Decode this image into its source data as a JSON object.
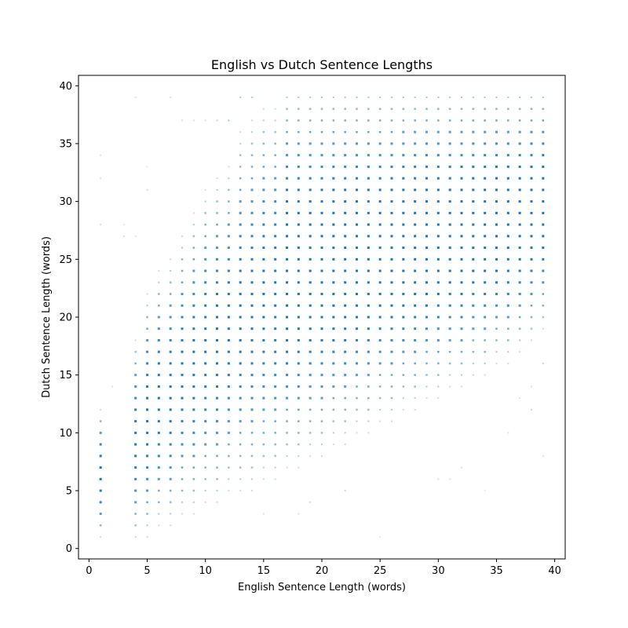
{
  "chart_data": {
    "type": "scatter",
    "title": "English vs Dutch Sentence Lengths",
    "xlabel": "English Sentence Length (words)",
    "ylabel": "Dutch Sentence Length (words)",
    "xlim": [
      -0.9,
      40.9
    ],
    "ylim": [
      -0.9,
      40.9
    ],
    "xticks": [
      0,
      5,
      10,
      15,
      20,
      25,
      30,
      35,
      40
    ],
    "yticks": [
      0,
      5,
      10,
      15,
      20,
      25,
      30,
      35,
      40
    ],
    "grid": false,
    "marker_color": "#1f77b4",
    "marker": "square",
    "encoding_note": "Points lie on an integer grid; opacity reflects density of sentence pairs at that (x, y).",
    "points": [
      {
        "x": 25,
        "y": 1,
        "alpha": 0.15
      },
      {
        "x": 34,
        "y": 5,
        "alpha": 0.15
      },
      {
        "x": 39,
        "y": 8,
        "alpha": 0.2
      },
      {
        "x": 36,
        "y": 10,
        "alpha": 0.2
      },
      {
        "x": 38,
        "y": 12,
        "alpha": 0.25
      },
      {
        "x": 37,
        "y": 13,
        "alpha": 0.2
      },
      {
        "x": 38,
        "y": 14,
        "alpha": 0.2
      },
      {
        "x": 39,
        "y": 16,
        "alpha": 0.3
      },
      {
        "x": 32,
        "y": 7,
        "alpha": 0.2
      },
      {
        "x": 30,
        "y": 6,
        "alpha": 0.2
      },
      {
        "x": 31,
        "y": 6,
        "alpha": 0.2
      },
      {
        "x": 4,
        "y": 39,
        "alpha": 0.2
      },
      {
        "x": 7,
        "y": 39,
        "alpha": 0.2
      },
      {
        "x": 1,
        "y": 34,
        "alpha": 0.2
      },
      {
        "x": 1,
        "y": 32,
        "alpha": 0.2
      },
      {
        "x": 5,
        "y": 33,
        "alpha": 0.15
      },
      {
        "x": 5,
        "y": 31,
        "alpha": 0.2
      },
      {
        "x": 1,
        "y": 28,
        "alpha": 0.2
      },
      {
        "x": 3,
        "y": 28,
        "alpha": 0.15
      },
      {
        "x": 3,
        "y": 27,
        "alpha": 0.2
      },
      {
        "x": 4,
        "y": 27,
        "alpha": 0.2
      },
      {
        "x": 2,
        "y": 14,
        "alpha": 0.2
      },
      {
        "x": 15,
        "y": 3,
        "alpha": 0.2
      },
      {
        "x": 18,
        "y": 3,
        "alpha": 0.2
      },
      {
        "x": 19,
        "y": 4,
        "alpha": 0.25
      },
      {
        "x": 22,
        "y": 5,
        "alpha": 0.25
      },
      {
        "x": 12,
        "y": 37,
        "alpha": 0.4
      },
      {
        "x": 11,
        "y": 37,
        "alpha": 0.3
      },
      {
        "x": 13,
        "y": 39,
        "alpha": 0.35
      },
      {
        "x": 14,
        "y": 39,
        "alpha": 0.35
      },
      {
        "x": 10,
        "y": 37,
        "alpha": 0.2
      },
      {
        "x": 9,
        "y": 37,
        "alpha": 0.2
      },
      {
        "x": 8,
        "y": 37,
        "alpha": 0.2
      }
    ],
    "mass": {
      "lower_curve": [
        [
          1,
          1
        ],
        [
          4,
          1
        ],
        [
          5,
          1
        ],
        [
          6,
          2
        ],
        [
          7,
          2
        ],
        [
          8,
          3
        ],
        [
          9,
          3
        ],
        [
          10,
          4
        ],
        [
          11,
          4
        ],
        [
          12,
          5
        ],
        [
          13,
          5
        ],
        [
          14,
          5
        ],
        [
          15,
          6
        ],
        [
          16,
          6
        ],
        [
          17,
          7
        ],
        [
          18,
          7
        ],
        [
          19,
          8
        ],
        [
          20,
          8
        ],
        [
          21,
          9
        ],
        [
          22,
          9
        ],
        [
          23,
          10
        ],
        [
          24,
          10
        ],
        [
          25,
          11
        ],
        [
          26,
          11
        ],
        [
          27,
          12
        ],
        [
          28,
          12
        ],
        [
          29,
          13
        ],
        [
          30,
          13
        ],
        [
          31,
          14
        ],
        [
          32,
          14
        ],
        [
          33,
          15
        ],
        [
          34,
          15
        ],
        [
          35,
          16
        ],
        [
          36,
          16
        ],
        [
          37,
          17
        ],
        [
          38,
          18
        ],
        [
          39,
          19
        ]
      ],
      "upper_curve": [
        [
          1,
          12
        ],
        [
          2,
          12
        ],
        [
          3,
          14
        ],
        [
          4,
          18
        ],
        [
          5,
          22
        ],
        [
          6,
          24
        ],
        [
          7,
          25
        ],
        [
          8,
          27
        ],
        [
          9,
          29
        ],
        [
          10,
          31
        ],
        [
          11,
          32
        ],
        [
          12,
          33
        ],
        [
          13,
          36
        ],
        [
          14,
          37
        ],
        [
          15,
          38
        ],
        [
          16,
          38
        ],
        [
          17,
          39
        ],
        [
          18,
          39
        ],
        [
          19,
          39
        ],
        [
          20,
          39
        ],
        [
          21,
          39
        ],
        [
          22,
          39
        ],
        [
          23,
          39
        ],
        [
          24,
          39
        ],
        [
          25,
          39
        ],
        [
          26,
          39
        ],
        [
          27,
          39
        ],
        [
          28,
          39
        ],
        [
          29,
          39
        ],
        [
          30,
          39
        ],
        [
          31,
          39
        ],
        [
          32,
          39
        ],
        [
          33,
          39
        ],
        [
          34,
          39
        ],
        [
          35,
          39
        ],
        [
          36,
          39
        ],
        [
          37,
          39
        ],
        [
          38,
          39
        ],
        [
          39,
          39
        ]
      ]
    }
  }
}
